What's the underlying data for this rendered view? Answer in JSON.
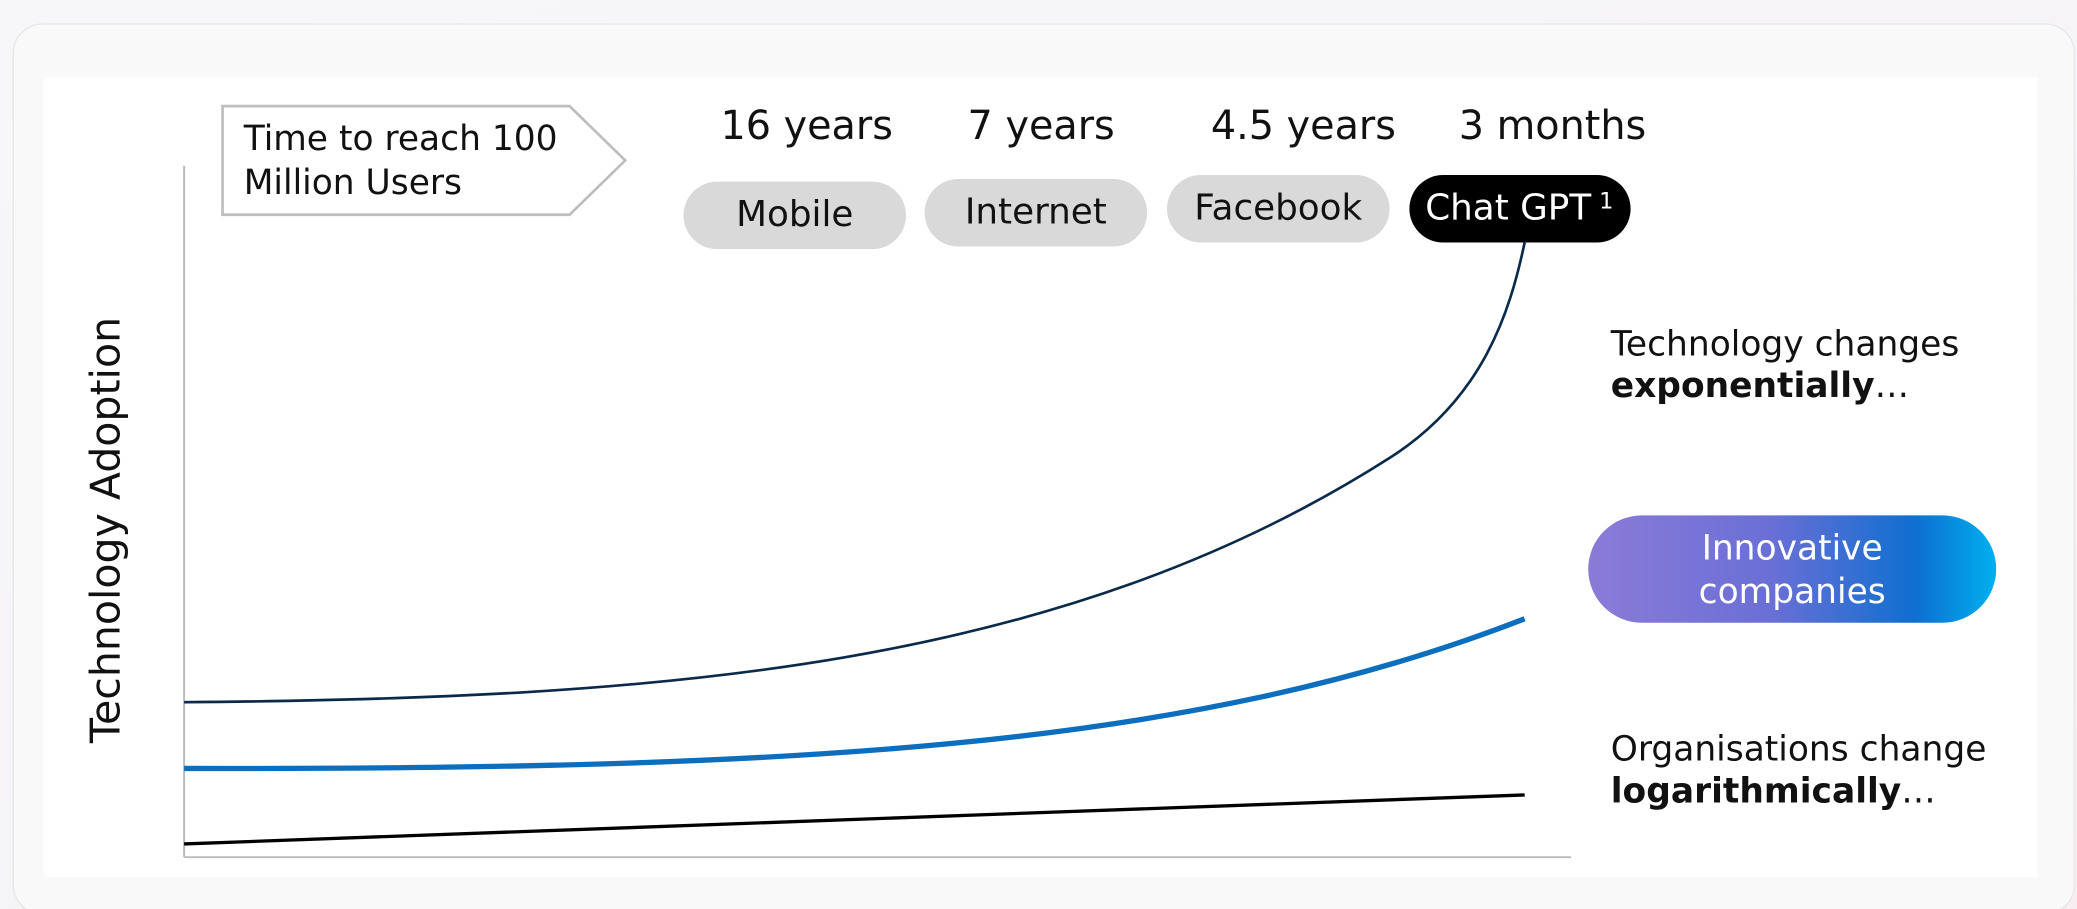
{
  "axis_label": "Technology Adoption",
  "callout": {
    "lines": [
      "Time to reach 100",
      "Million Users"
    ]
  },
  "milestones": [
    {
      "time": "16 years",
      "name": "Mobile"
    },
    {
      "time": "7 years",
      "name": "Internet"
    },
    {
      "time": "4.5 years",
      "name": "Facebook"
    },
    {
      "time": "3 months",
      "name": "Chat GPT",
      "footnote": "1"
    }
  ],
  "annotations": [
    {
      "lead": "Technology changes",
      "emphasis": "exponentially",
      "trail": "…"
    },
    {
      "lead": "Organisations change",
      "emphasis": "logarithmically",
      "trail": "…"
    }
  ],
  "badge": {
    "lines": [
      "Innovative",
      "companies"
    ]
  }
}
